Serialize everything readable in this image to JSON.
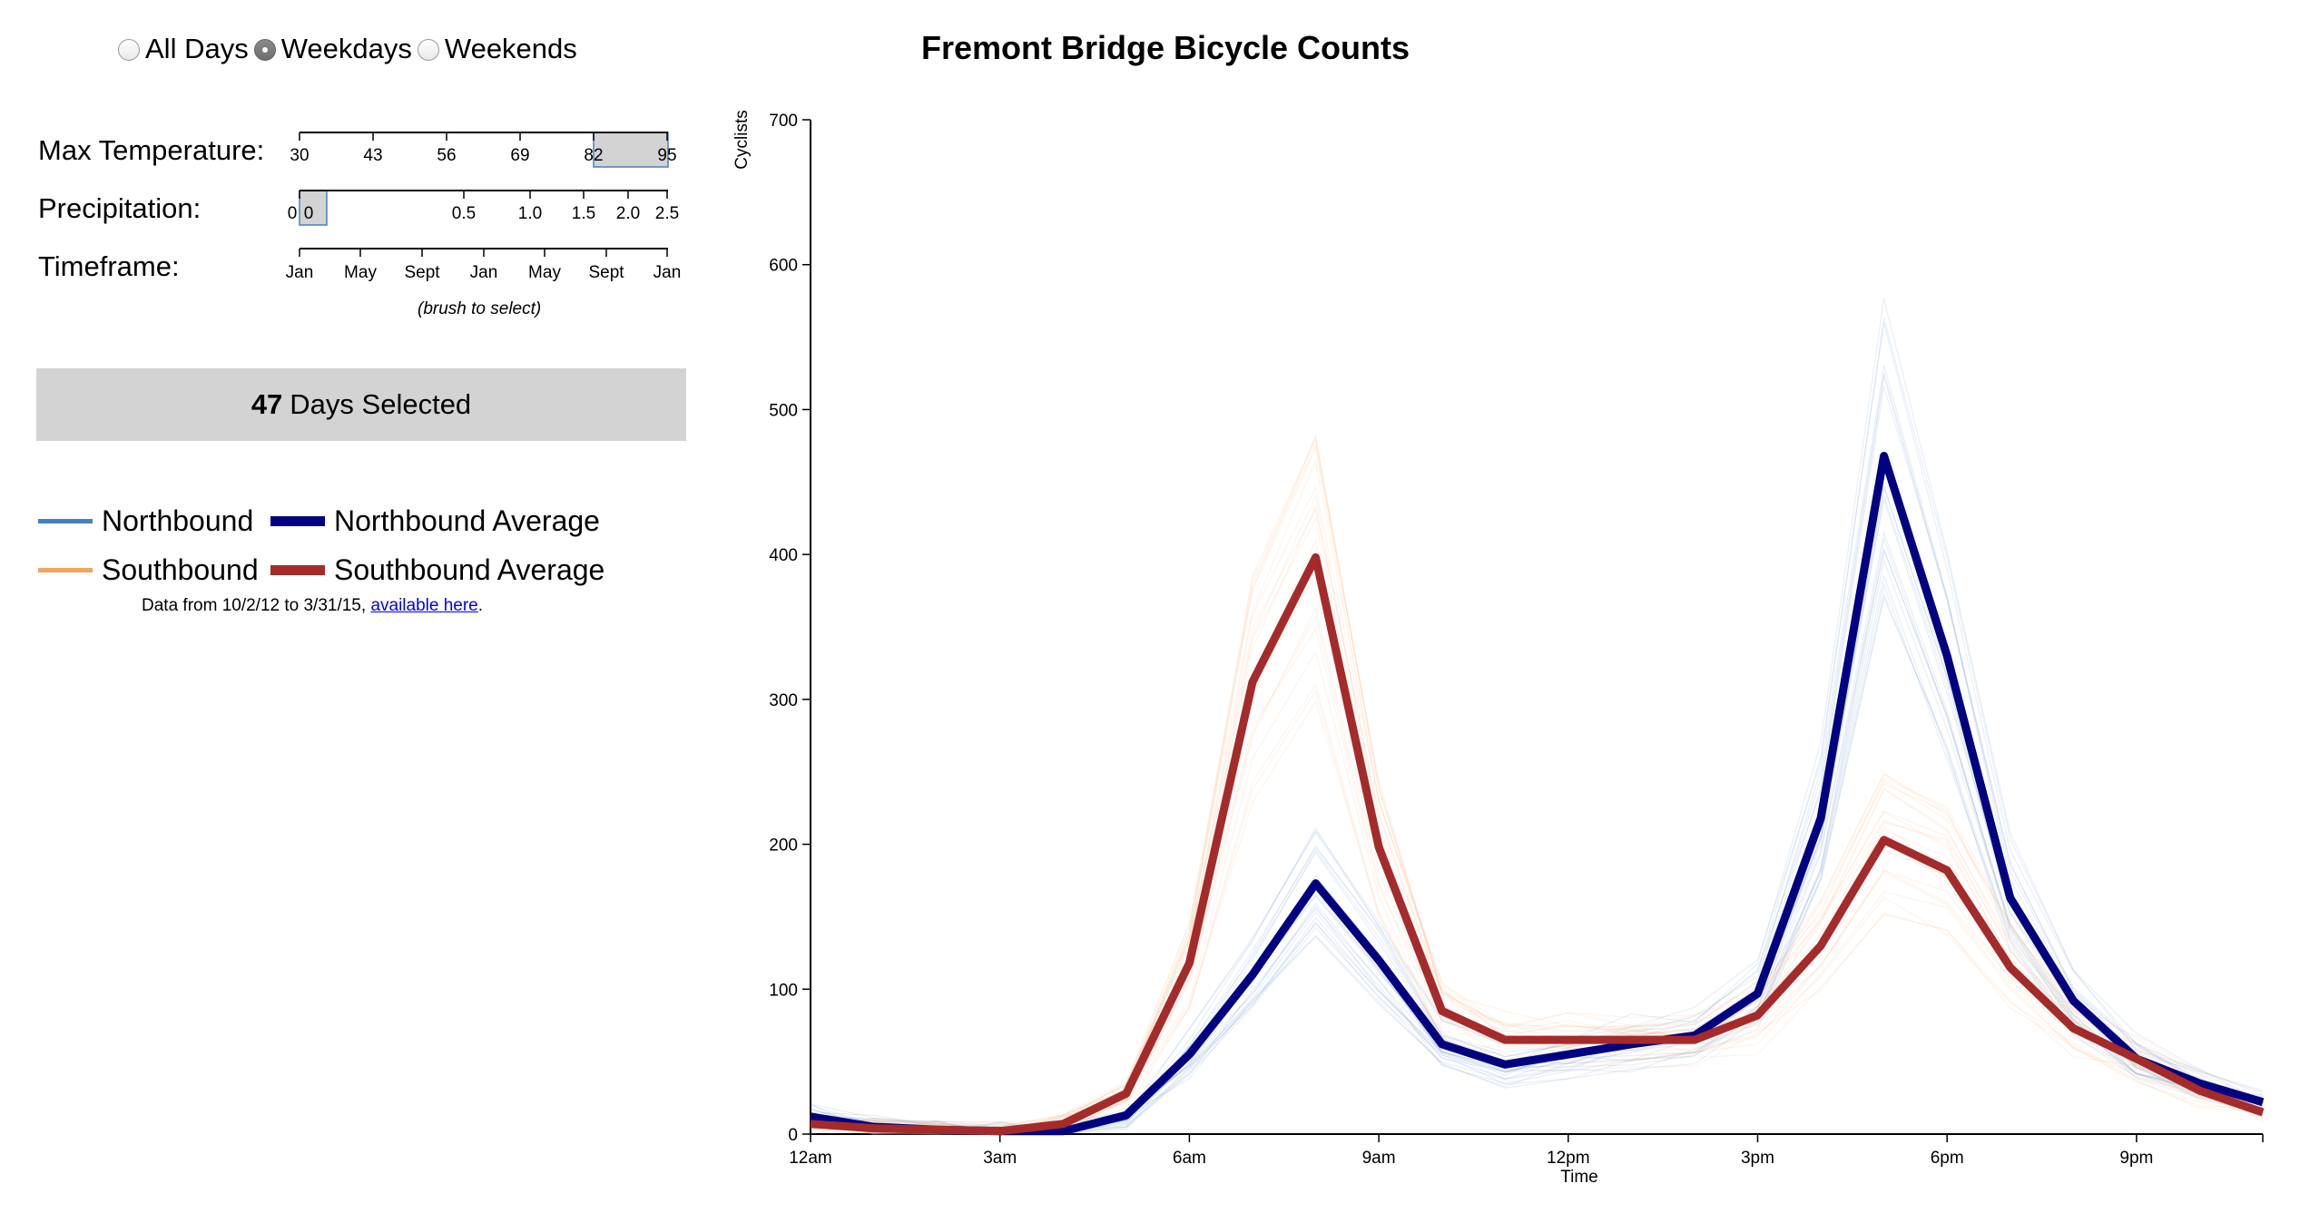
{
  "controls": {
    "day_filter": {
      "options": [
        {
          "label": "All Days",
          "checked": false
        },
        {
          "label": "Weekdays",
          "checked": true
        },
        {
          "label": "Weekends",
          "checked": false
        }
      ]
    },
    "filters": {
      "max_temperature": {
        "label": "Max Temperature:",
        "ticks": [
          "30",
          "43",
          "56",
          "69",
          "82",
          "95"
        ],
        "selected_range": [
          82,
          95
        ]
      },
      "precipitation": {
        "label": "Precipitation:",
        "ticks": [
          "0",
          "0",
          "0.5",
          "1.0",
          "1.5",
          "2.0",
          "2.5"
        ],
        "selected_range": [
          0,
          0
        ]
      },
      "timeframe": {
        "label": "Timeframe:",
        "ticks": [
          "Jan",
          "May",
          "Sept",
          "Jan",
          "May",
          "Sept",
          "Jan"
        ]
      },
      "brush_note": "(brush to select)"
    },
    "days_selected": {
      "count": "47",
      "label": "Days Selected"
    }
  },
  "legend": {
    "northbound": "Northbound",
    "northbound_average": "Northbound Average",
    "southbound": "Southbound",
    "southbound_average": "Southbound Average"
  },
  "data_note": {
    "prefix": "Data from 10/2/12 to 3/31/15, ",
    "link": "available here",
    "suffix": "."
  },
  "colors": {
    "northbound": "#4a7fc1",
    "northbound_average": "#000080",
    "southbound": "#f4a460",
    "southbound_average": "#a52a2a",
    "days_box": "#d3d3d3"
  },
  "chart_data": {
    "type": "line",
    "title": "Fremont Bridge Bicycle Counts",
    "xlabel": "Time",
    "ylabel": "Cyclists",
    "x": [
      0,
      1,
      2,
      3,
      4,
      5,
      6,
      7,
      8,
      9,
      10,
      11,
      12,
      13,
      14,
      15,
      16,
      17,
      18,
      19,
      20,
      21,
      22,
      23
    ],
    "x_tick_values": [
      0,
      3,
      6,
      9,
      12,
      15,
      18,
      21
    ],
    "x_tick_labels": [
      "12am",
      "3am",
      "6am",
      "9am",
      "12pm",
      "3pm",
      "6pm",
      "9pm"
    ],
    "xlim": [
      0,
      23
    ],
    "y_ticks": [
      0,
      100,
      200,
      300,
      400,
      500,
      600,
      700
    ],
    "ylim": [
      0,
      700
    ],
    "grid": false,
    "series": [
      {
        "name": "Northbound Average",
        "values": [
          12,
          5,
          3,
          2,
          2,
          13,
          55,
          110,
          173,
          120,
          62,
          48,
          55,
          62,
          68,
          97,
          218,
          468,
          330,
          163,
          92,
          52,
          35,
          22
        ]
      },
      {
        "name": "Southbound Average",
        "values": [
          7,
          4,
          3,
          2,
          7,
          28,
          118,
          312,
          398,
          198,
          85,
          65,
          65,
          65,
          65,
          82,
          130,
          203,
          182,
          115,
          73,
          52,
          30,
          15
        ]
      }
    ]
  }
}
